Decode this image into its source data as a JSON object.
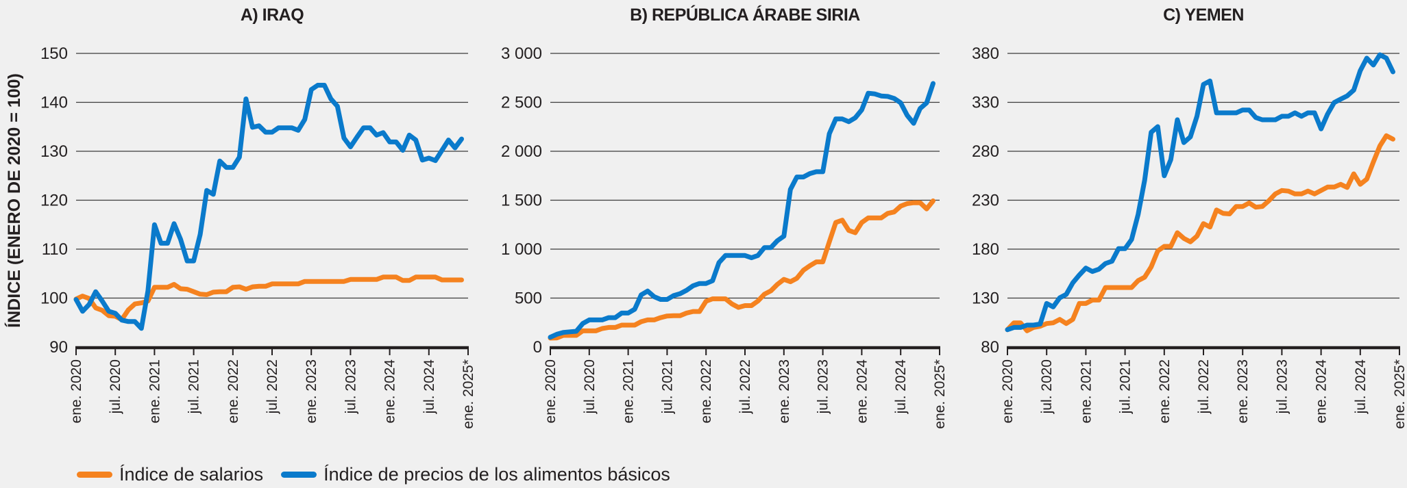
{
  "figure": {
    "y_axis_title": "ÍNDICE (ENERO DE 2020 = 100)"
  },
  "legend": {
    "items": [
      {
        "label": "Índice de salarios",
        "color": "#f5821f"
      },
      {
        "label": "Índice de precios de los alimentos básicos",
        "color": "#0a7acb"
      }
    ]
  },
  "chart_data": [
    {
      "type": "line",
      "title": "A) IRAQ",
      "xlabel": "",
      "ylabel": "ÍNDICE (ENERO DE 2020 = 100)",
      "ylim": [
        90,
        150
      ],
      "yticks": [
        90,
        100,
        110,
        120,
        130,
        140,
        150
      ],
      "ytick_labels": [
        "90",
        "100",
        "110",
        "120",
        "130",
        "140",
        "150"
      ],
      "x_period": "monthly, ene. 2020 – dic. 2024",
      "xticks": [
        "ene. 2020",
        "jul. 2020",
        "ene. 2021",
        "jul. 2021",
        "ene. 2022",
        "jul. 2022",
        "ene. 2023",
        "jul. 2023",
        "ene. 2024",
        "jul. 2024",
        "ene. 2025*"
      ],
      "grid": true,
      "legend": "bottom-left",
      "series": [
        {
          "name": "Índice de salarios",
          "color": "#f5821f",
          "values": [
            99.8,
            100.4,
            99.9,
            98.0,
            97.5,
            96.4,
            96.3,
            95.6,
            97.6,
            98.8,
            99.0,
            99.4,
            102.2,
            102.2,
            102.2,
            102.8,
            101.9,
            101.8,
            101.3,
            100.8,
            100.7,
            101.2,
            101.3,
            101.3,
            102.2,
            102.3,
            101.8,
            102.3,
            102.4,
            102.4,
            102.9,
            102.9,
            102.9,
            102.9,
            102.9,
            103.4,
            103.4,
            103.4,
            103.4,
            103.4,
            103.4,
            103.4,
            103.8,
            103.8,
            103.8,
            103.8,
            103.8,
            104.3,
            104.3,
            104.3,
            103.6,
            103.6,
            104.3,
            104.3,
            104.3,
            104.3,
            103.7,
            103.7,
            103.7,
            103.7
          ]
        },
        {
          "name": "Índice de precios de los alimentos básicos",
          "color": "#0a7acb",
          "values": [
            99.7,
            97.3,
            98.7,
            101.3,
            99.4,
            97.3,
            96.9,
            95.5,
            95.2,
            95.2,
            93.8,
            101.5,
            115.0,
            111.2,
            111.2,
            115.2,
            112.0,
            107.6,
            107.6,
            113.0,
            122.0,
            121.2,
            128.0,
            126.7,
            126.7,
            128.8,
            140.7,
            134.9,
            135.2,
            133.9,
            133.9,
            134.8,
            134.8,
            134.8,
            134.3,
            136.5,
            142.6,
            143.5,
            143.5,
            140.7,
            139.2,
            132.7,
            130.9,
            132.9,
            134.8,
            134.8,
            133.3,
            133.8,
            131.9,
            131.9,
            130.2,
            133.3,
            132.3,
            128.2,
            128.6,
            128.1,
            130.2,
            132.3,
            130.7,
            132.5
          ]
        }
      ]
    },
    {
      "type": "line",
      "title": "B) REPÚBLICA ÁRABE SIRIA",
      "xlabel": "",
      "ylabel": "ÍNDICE (ENERO DE 2020 = 100)",
      "ylim": [
        0,
        3000
      ],
      "yticks": [
        0,
        500,
        1000,
        1500,
        2000,
        2500,
        3000
      ],
      "ytick_labels": [
        "0",
        "500",
        "1 000",
        "1 500",
        "2 000",
        "2 500",
        "3 000"
      ],
      "x_period": "monthly, ene. 2020 – dic. 2024",
      "xticks": [
        "ene. 2020",
        "jul. 2020",
        "ene. 2021",
        "jul. 2021",
        "ene. 2022",
        "jul. 2022",
        "ene. 2023",
        "jul. 2023",
        "ene. 2024",
        "jul. 2024",
        "ene. 2025*"
      ],
      "grid": true,
      "series": [
        {
          "name": "Índice de salarios",
          "color": "#f5821f",
          "values": [
            91,
            93,
            119,
            119,
            119,
            165,
            165,
            165,
            189,
            200,
            200,
            224,
            224,
            224,
            259,
            277,
            277,
            300,
            317,
            320,
            320,
            347,
            363,
            363,
            468,
            492,
            492,
            492,
            440,
            405,
            423,
            423,
            470,
            540,
            574,
            640,
            691,
            667,
            702,
            784,
            830,
            870,
            870,
            1075,
            1272,
            1296,
            1191,
            1168,
            1272,
            1319,
            1319,
            1319,
            1365,
            1380,
            1440,
            1465,
            1474,
            1474,
            1411,
            1493
          ]
        },
        {
          "name": "Índice de precios de los alimentos básicos",
          "color": "#0a7acb",
          "values": [
            100,
            130,
            149,
            155,
            161,
            240,
            277,
            277,
            277,
            300,
            300,
            347,
            347,
            386,
            532,
            572,
            514,
            486,
            486,
            525,
            545,
            580,
            626,
            649,
            649,
            677,
            863,
            935,
            935,
            935,
            935,
            912,
            935,
            1016,
            1016,
            1086,
            1133,
            1609,
            1737,
            1737,
            1772,
            1791,
            1791,
            2179,
            2330,
            2330,
            2302,
            2342,
            2423,
            2593,
            2586,
            2565,
            2560,
            2540,
            2495,
            2367,
            2285,
            2437,
            2495,
            2692
          ]
        }
      ]
    },
    {
      "type": "line",
      "title": "C) YEMEN",
      "xlabel": "",
      "ylabel": "ÍNDICE (ENERO DE 2020 = 100)",
      "ylim": [
        80,
        380
      ],
      "yticks": [
        80,
        130,
        180,
        230,
        280,
        330,
        380
      ],
      "ytick_labels": [
        "80",
        "130",
        "180",
        "230",
        "280",
        "330",
        "380"
      ],
      "x_period": "monthly, ene. 2020 – dic. 2024",
      "xticks": [
        "ene. 2020",
        "jul. 2020",
        "ene. 2021",
        "jul. 2021",
        "ene. 2022",
        "jul. 2022",
        "ene. 2023",
        "jul. 2023",
        "ene. 2024",
        "jul. 2024",
        "ene. 2025*"
      ],
      "grid": true,
      "series": [
        {
          "name": "Índice de salarios",
          "color": "#f5821f",
          "values": [
            97.7,
            104.7,
            104.7,
            96.6,
            100.0,
            101.2,
            104.0,
            104.7,
            108.2,
            104.0,
            108.2,
            124.5,
            124.5,
            128.0,
            128.0,
            140.8,
            140.8,
            140.8,
            140.8,
            140.8,
            147.8,
            151.3,
            161.8,
            178.1,
            182.8,
            182.8,
            196.8,
            191.0,
            187.5,
            193.3,
            206.1,
            202.6,
            220.0,
            216.6,
            216.0,
            223.6,
            223.6,
            227.1,
            222.9,
            223.6,
            229.4,
            236.4,
            239.9,
            239.3,
            236.4,
            236.4,
            239.3,
            236.4,
            239.9,
            243.4,
            243.4,
            246.2,
            243.0,
            256.9,
            246.2,
            251.5,
            269.0,
            285.4,
            295.9,
            292.4
          ]
        },
        {
          "name": "Índice de precios de los alimentos básicos",
          "color": "#0a7acb",
          "values": [
            97.7,
            100.0,
            100.0,
            102.4,
            102.4,
            103.5,
            124.5,
            121.0,
            130.3,
            133.8,
            145.5,
            153.6,
            160.6,
            157.1,
            159.5,
            165.3,
            167.6,
            180.5,
            180.5,
            189.8,
            215.5,
            250.4,
            299.4,
            305.2,
            255.0,
            271.4,
            312.2,
            288.9,
            294.7,
            315.7,
            348.3,
            351.8,
            319.2,
            319.2,
            319.2,
            319.2,
            322.2,
            322.2,
            314.5,
            312.2,
            312.2,
            312.2,
            315.7,
            315.7,
            319.2,
            315.7,
            319.2,
            319.2,
            302.9,
            318.0,
            329.7,
            333.2,
            336.6,
            342.5,
            362.3,
            375.1,
            368.1,
            378.6,
            375.1,
            361.1
          ]
        }
      ]
    }
  ]
}
